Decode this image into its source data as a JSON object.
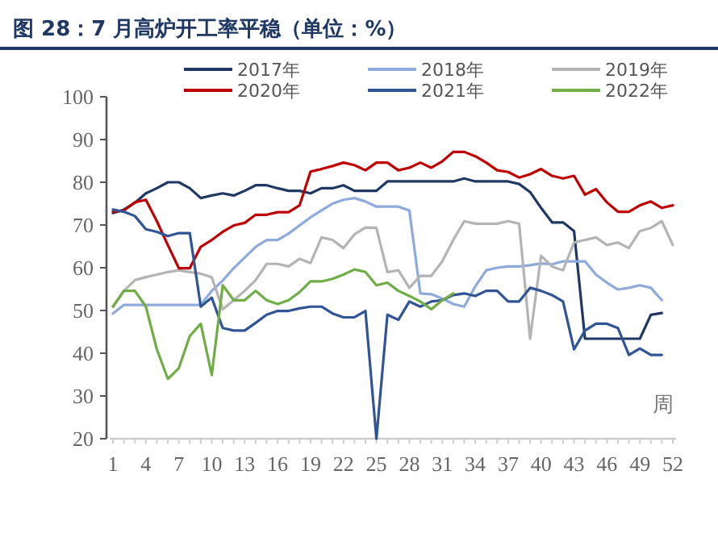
{
  "chart_data": {
    "type": "line",
    "title": "图 28：7 月高炉开工率平稳（单位：%）",
    "xlabel": "周",
    "x": [
      1,
      2,
      3,
      4,
      5,
      6,
      7,
      8,
      9,
      10,
      11,
      12,
      13,
      14,
      15,
      16,
      17,
      18,
      19,
      20,
      21,
      22,
      23,
      24,
      25,
      26,
      27,
      28,
      29,
      30,
      31,
      32,
      33,
      34,
      35,
      36,
      37,
      38,
      39,
      40,
      41,
      42,
      43,
      44,
      45,
      46,
      47,
      48,
      49,
      50,
      51,
      52
    ],
    "xlim": [
      1,
      52
    ],
    "xticks": [
      1,
      4,
      7,
      10,
      13,
      16,
      19,
      22,
      25,
      28,
      31,
      34,
      37,
      40,
      43,
      46,
      49,
      52
    ],
    "ylim": [
      20,
      100
    ],
    "yticks": [
      20,
      30,
      40,
      50,
      60,
      70,
      80,
      90,
      100
    ],
    "grid": false,
    "legend": "top",
    "line_style": "solid",
    "series": [
      {
        "name": "2017年",
        "color": "#1f3864",
        "values": [
          72.8,
          73.6,
          75.2,
          77.4,
          78.6,
          80,
          80,
          78.6,
          76.3,
          76.9,
          77.4,
          76.9,
          78,
          79.3,
          79.3,
          78.6,
          78,
          78,
          77.4,
          78.6,
          78.6,
          79.3,
          78,
          78,
          78,
          80.2,
          80.2,
          80.2,
          80.2,
          80.2,
          80.2,
          80.2,
          80.9,
          80.2,
          80.2,
          80.2,
          80.2,
          79.6,
          77.7,
          74,
          70.6,
          70.6,
          68.6,
          43.4,
          43.4,
          43.4,
          43.4,
          43.4,
          43.4,
          49,
          49.4,
          null
        ]
      },
      {
        "name": "2018年",
        "color": "#8eaadb",
        "values": [
          49.3,
          51.3,
          51.3,
          51.3,
          51.3,
          51.3,
          51.3,
          51.3,
          51.3,
          54.6,
          57,
          59.9,
          62.4,
          64.9,
          66.5,
          66.5,
          68,
          69.9,
          71.8,
          73.4,
          75,
          75.9,
          76.3,
          75.5,
          74.3,
          74.3,
          74.3,
          73.4,
          54,
          53.8,
          52.8,
          51.5,
          50.9,
          55.6,
          59.4,
          60,
          60.3,
          60.3,
          60.6,
          61,
          60.8,
          61.5,
          61.5,
          61.5,
          58.4,
          56.5,
          54.9,
          55.3,
          55.9,
          55.3,
          52.4,
          null
        ]
      },
      {
        "name": "2019年",
        "color": "#b4b4b4",
        "values": [
          50.9,
          54.6,
          57.1,
          57.8,
          58.4,
          59,
          59.4,
          59,
          58.6,
          57.8,
          50.3,
          52.4,
          54.6,
          57.1,
          60.9,
          60.9,
          60.3,
          62.1,
          61.1,
          67.1,
          66.5,
          64.6,
          67.8,
          69.4,
          69.3,
          59,
          59.4,
          55.3,
          58.1,
          58.1,
          61.5,
          66.5,
          70.9,
          70.3,
          70.3,
          70.3,
          70.9,
          70.3,
          43.4,
          62.8,
          60.3,
          59.4,
          65.9,
          66.5,
          67.1,
          65.3,
          65.9,
          64.6,
          68.6,
          69.3,
          70.9,
          65.3
        ]
      },
      {
        "name": "2020年",
        "color": "#c00000",
        "values": [
          73.1,
          73.4,
          75.3,
          75.9,
          70.9,
          65.3,
          59.9,
          59.9,
          64.9,
          66.5,
          68.4,
          69.9,
          70.5,
          72.4,
          72.4,
          73,
          73,
          74.6,
          82.5,
          83.1,
          83.8,
          84.6,
          84,
          82.8,
          84.6,
          84.6,
          82.8,
          83.4,
          84.6,
          83.4,
          84.9,
          87.1,
          87.1,
          86.1,
          84.6,
          82.8,
          82.4,
          81.1,
          81.9,
          83.1,
          81.5,
          80.9,
          81.5,
          77.1,
          78.4,
          75.3,
          73.1,
          73.1,
          74.6,
          75.5,
          74,
          74.6
        ]
      },
      {
        "name": "2021年",
        "color": "#2f5597",
        "values": [
          73.6,
          73.1,
          72.1,
          69,
          68.4,
          67.4,
          68.1,
          68.1,
          50.9,
          53,
          45.9,
          45.3,
          45.3,
          47.1,
          49,
          49.9,
          49.9,
          50.5,
          50.9,
          50.9,
          49.3,
          48.4,
          48.4,
          49.9,
          20,
          49,
          47.8,
          52.1,
          50.9,
          52.1,
          52.4,
          53.6,
          54,
          53.4,
          54.6,
          54.6,
          52.1,
          52.1,
          55.3,
          54.6,
          53.6,
          52.1,
          40.9,
          45.3,
          46.9,
          46.9,
          45.9,
          39.6,
          41.1,
          39.6,
          39.6,
          null
        ]
      },
      {
        "name": "2022年",
        "color": "#70ad47",
        "values": [
          50.9,
          54.6,
          54.6,
          50.9,
          40.9,
          34,
          36.5,
          44,
          46.9,
          34.9,
          55.9,
          52.4,
          52.4,
          54.6,
          52.4,
          51.5,
          52.4,
          54.3,
          56.8,
          56.8,
          57.4,
          58.4,
          59.6,
          59,
          55.9,
          56.5,
          54.6,
          53.4,
          52.1,
          50.3,
          52.4,
          54,
          null,
          null,
          null,
          null,
          null,
          null,
          null,
          null,
          null,
          null,
          null,
          null,
          null,
          null,
          null,
          null,
          null,
          null,
          null,
          null
        ]
      }
    ]
  }
}
